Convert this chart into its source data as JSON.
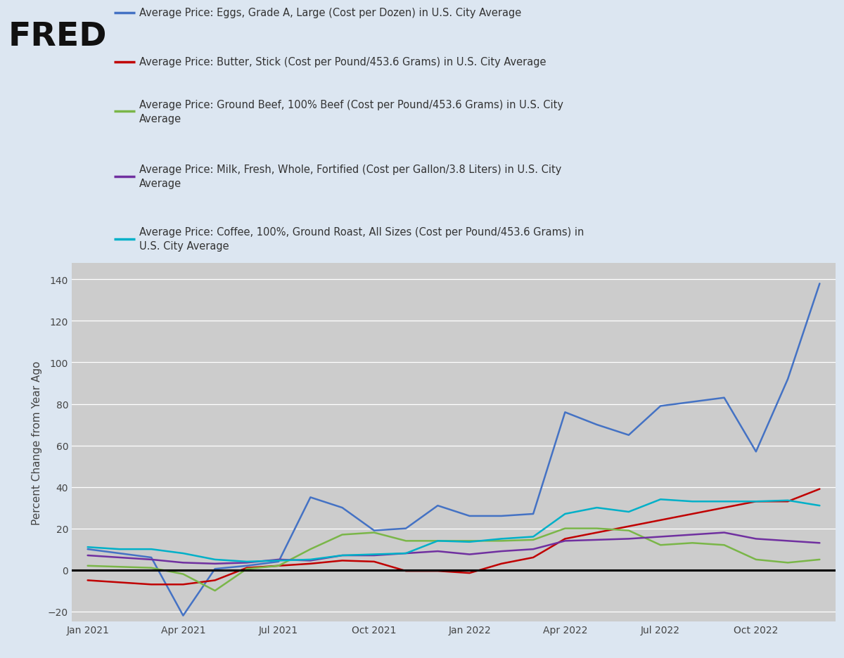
{
  "background_color": "#dce6f1",
  "plot_bg_color": "#cccccc",
  "ylabel": "Percent Change from Year Ago",
  "ylim": [
    -25,
    145
  ],
  "yticks": [
    -20,
    0,
    20,
    40,
    60,
    80,
    100,
    120,
    140
  ],
  "series": {
    "eggs": {
      "color": "#4472c4",
      "label": "Average Price: Eggs, Grade A, Large (Cost per Dozen) in U.S. City Average",
      "data": [
        10.0,
        8.0,
        6.0,
        -22.0,
        0.5,
        2.0,
        4.0,
        35.0,
        30.0,
        19.0,
        20.0,
        31.0,
        26.0,
        26.0,
        27.0,
        76.0,
        70.0,
        65.0,
        79.0,
        81.0,
        83.0,
        57.0,
        92.0,
        138.0
      ]
    },
    "butter": {
      "color": "#c00000",
      "label": "Average Price: Butter, Stick (Cost per Pound/453.6 Grams) in U.S. City Average",
      "data": [
        -5.0,
        -6.0,
        -7.0,
        -7.0,
        -5.0,
        1.0,
        2.0,
        3.0,
        4.5,
        4.0,
        -0.5,
        -0.5,
        -1.5,
        3.0,
        6.0,
        15.0,
        18.0,
        21.0,
        24.0,
        27.0,
        30.0,
        33.0,
        33.0,
        39.0
      ]
    },
    "beef": {
      "color": "#7ab648",
      "label": "Average Price: Ground Beef, 100% Beef (Cost per Pound/453.6 Grams) in U.S. City\nAverage",
      "data": [
        2.0,
        1.5,
        1.0,
        -2.0,
        -10.0,
        0.5,
        2.0,
        10.0,
        17.0,
        18.0,
        14.0,
        14.0,
        14.0,
        14.0,
        14.5,
        20.0,
        20.0,
        19.0,
        12.0,
        13.0,
        12.0,
        5.0,
        3.5,
        5.0
      ]
    },
    "milk": {
      "color": "#7030a0",
      "label": "Average Price: Milk, Fresh, Whole, Fortified (Cost per Gallon/3.8 Liters) in U.S. City\nAverage",
      "data": [
        7.0,
        6.0,
        5.0,
        3.5,
        3.0,
        3.5,
        5.0,
        4.5,
        7.0,
        7.0,
        8.0,
        9.0,
        7.5,
        9.0,
        10.0,
        14.0,
        14.5,
        15.0,
        16.0,
        17.0,
        18.0,
        15.0,
        14.0,
        13.0
      ]
    },
    "coffee": {
      "color": "#00b0c8",
      "label": "Average Price: Coffee, 100%, Ground Roast, All Sizes (Cost per Pound/453.6 Grams) in\nU.S. City Average",
      "data": [
        11.0,
        10.0,
        10.0,
        8.0,
        5.0,
        4.0,
        4.5,
        5.0,
        7.0,
        7.5,
        8.0,
        14.0,
        13.5,
        15.0,
        16.0,
        27.0,
        30.0,
        28.0,
        34.0,
        33.0,
        33.0,
        33.0,
        33.5,
        31.0
      ]
    }
  },
  "series_order": [
    "eggs",
    "butter",
    "beef",
    "milk",
    "coffee"
  ],
  "xtick_labels": [
    "Jan 2021",
    "Apr 2021",
    "Jul 2021",
    "Oct 2021",
    "Jan 2022",
    "Apr 2022",
    "Jul 2022",
    "Oct 2022"
  ],
  "xtick_positions": [
    0,
    3,
    6,
    9,
    12,
    15,
    18,
    21
  ]
}
